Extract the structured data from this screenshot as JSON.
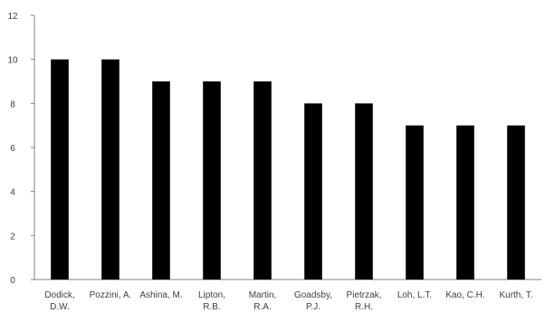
{
  "chart_data": {
    "type": "bar",
    "categories": [
      [
        "Dodick,",
        "D.W."
      ],
      [
        "Pozzini, A."
      ],
      [
        "Ashina, M."
      ],
      [
        "Lipton,",
        "R.B."
      ],
      [
        "Martin,",
        "R.A."
      ],
      [
        "Goadsby,",
        "P.J."
      ],
      [
        "Pietrzak,",
        "R.H."
      ],
      [
        "Loh, L.T."
      ],
      [
        "Kao, C.H."
      ],
      [
        "Kurth, T."
      ]
    ],
    "values": [
      10,
      10,
      9,
      9,
      9,
      8,
      8,
      7,
      7,
      7
    ],
    "ylim": [
      0,
      12
    ],
    "yticks": [
      0,
      2,
      4,
      6,
      8,
      10,
      12
    ],
    "bar_color": "#000000",
    "axis_color": "#808080",
    "grid": false,
    "title": "",
    "xlabel": "",
    "ylabel": ""
  }
}
